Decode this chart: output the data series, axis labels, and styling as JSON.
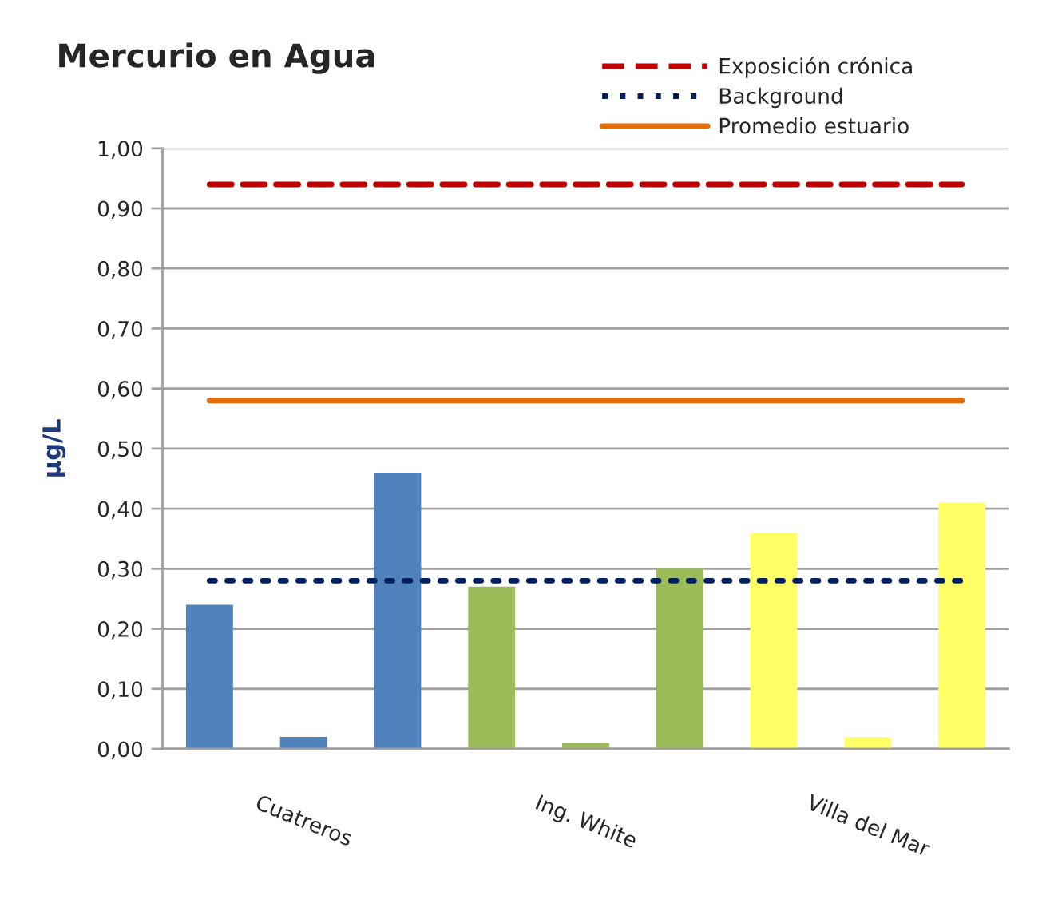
{
  "chart_data": {
    "type": "bar",
    "title": "Mercurio en Agua",
    "ylabel": "µg/L",
    "categories": [
      null,
      "Cuatreros",
      null,
      null,
      "Ing. White",
      null,
      null,
      "Villa del Mar",
      null
    ],
    "values": [
      0.24,
      0.02,
      0.46,
      0.27,
      0.01,
      0.3,
      0.36,
      0.02,
      0.41
    ],
    "colors": [
      "#4f81bd",
      "#4f81bd",
      "#4f81bd",
      "#9bbb59",
      "#9bbb59",
      "#9bbb59",
      "#ffff66",
      "#ffff66",
      "#ffff66"
    ],
    "ylim": [
      0,
      1
    ],
    "yticks": [
      {
        "value": 0,
        "label": "0,00"
      },
      {
        "value": 0.1,
        "label": "0,10"
      },
      {
        "value": 0.2,
        "label": "0,20"
      },
      {
        "value": 0.3,
        "label": "0,30"
      },
      {
        "value": 0.4,
        "label": "0,40"
      },
      {
        "value": 0.5,
        "label": "0,50"
      },
      {
        "value": 0.6,
        "label": "0,60"
      },
      {
        "value": 0.7,
        "label": "0,70"
      },
      {
        "value": 0.8,
        "label": "0,80"
      },
      {
        "value": 0.9,
        "label": "0,90"
      },
      {
        "value": 1.0,
        "label": "1,00"
      }
    ],
    "grid": "y",
    "legend": "top right",
    "ref_lines": [
      {
        "axis": "y",
        "value": 0.94,
        "label": "Exposición crónica",
        "color": "#c00000",
        "line_style": "dashed"
      },
      {
        "axis": "y",
        "value": 0.28,
        "label": "Background",
        "color": "#002060",
        "line_style": "dotted"
      },
      {
        "axis": "y",
        "value": 0.58,
        "label": "Promedio estuario",
        "color": "#e46c0a",
        "line_style": "solid"
      }
    ]
  }
}
